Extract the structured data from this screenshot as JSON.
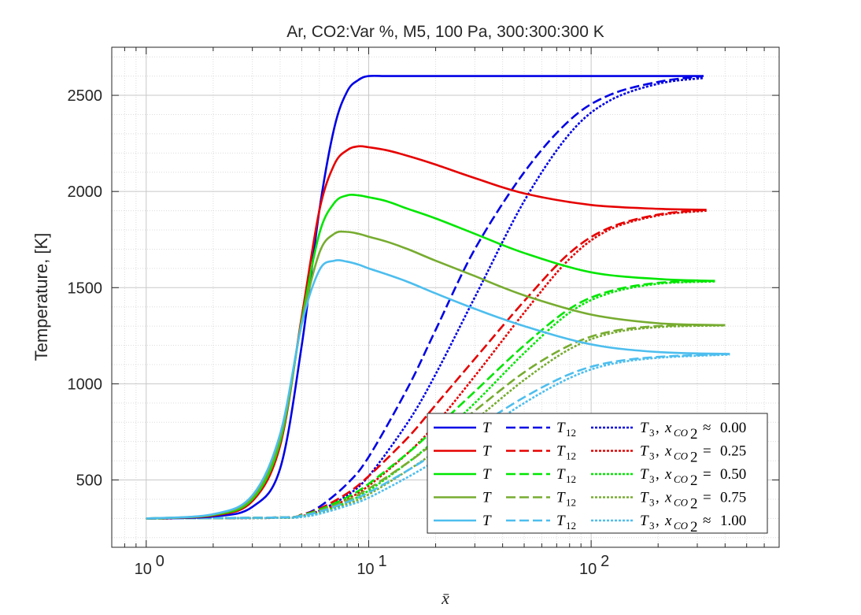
{
  "chart_data": {
    "type": "line",
    "title": "Ar, CO2:Var %, M5, 100 Pa, 300:300:300 K",
    "xlabel": "x̄",
    "ylabel": "Temperature, [K]",
    "xscale": "log",
    "xlim": [
      0.7,
      700
    ],
    "ylim": [
      150,
      2750
    ],
    "xticks": [
      1,
      10,
      100
    ],
    "xtick_labels": [
      {
        "base": "10",
        "exp": "0"
      },
      {
        "base": "10",
        "exp": "1"
      },
      {
        "base": "10",
        "exp": "2"
      }
    ],
    "yticks": [
      500,
      1000,
      1500,
      2000,
      2500
    ],
    "ytick_labels": [
      "500",
      "1000",
      "1500",
      "2000",
      "2500"
    ],
    "grid": true,
    "minor_grid": true,
    "legend_position": "bottom-right",
    "legend": {
      "T_label": "T",
      "T12_label": "T",
      "T12_sub": "12",
      "T3_label": "T",
      "T3_sub": "3",
      "x_label": "x",
      "x_sub": "CO",
      "x_subsub": "2",
      "rows": [
        {
          "rel": "≈",
          "value": "0.00"
        },
        {
          "rel": "=",
          "value": "0.25"
        },
        {
          "rel": "=",
          "value": "0.50"
        },
        {
          "rel": "=",
          "value": "0.75"
        },
        {
          "rel": "≈",
          "value": "1.00"
        }
      ]
    },
    "series": [
      {
        "group": 0,
        "kind": "T",
        "color": "#0000e6",
        "style": "solid",
        "x": [
          1,
          2,
          3,
          4,
          5,
          6,
          7,
          8,
          9,
          10,
          12,
          15,
          20,
          50,
          100,
          200,
          320
        ],
        "y": [
          300,
          310,
          360,
          560,
          1200,
          1900,
          2330,
          2520,
          2580,
          2600,
          2600,
          2600,
          2600,
          2600,
          2600,
          2600,
          2600
        ]
      },
      {
        "group": 0,
        "kind": "T12",
        "color": "#0000e6",
        "style": "dash",
        "x": [
          1,
          4,
          5,
          6,
          8,
          10,
          15,
          20,
          30,
          50,
          80,
          120,
          200,
          320
        ],
        "y": [
          300,
          305,
          320,
          360,
          480,
          620,
          980,
          1280,
          1700,
          2100,
          2370,
          2500,
          2570,
          2600
        ]
      },
      {
        "group": 0,
        "kind": "T3",
        "color": "#0000e6",
        "style": "dot",
        "x": [
          1,
          4,
          5,
          6,
          8,
          10,
          15,
          20,
          30,
          50,
          80,
          120,
          200,
          320
        ],
        "y": [
          300,
          303,
          312,
          340,
          420,
          520,
          800,
          1050,
          1450,
          1950,
          2300,
          2470,
          2560,
          2590
        ]
      },
      {
        "group": 1,
        "kind": "T",
        "color": "#e60000",
        "style": "solid",
        "x": [
          1,
          2,
          3,
          4,
          5,
          6,
          7,
          8,
          9,
          10,
          12,
          15,
          20,
          30,
          50,
          100,
          200,
          330
        ],
        "y": [
          300,
          315,
          390,
          680,
          1350,
          1900,
          2140,
          2215,
          2235,
          2230,
          2215,
          2185,
          2140,
          2070,
          1990,
          1930,
          1910,
          1905
        ]
      },
      {
        "group": 1,
        "kind": "T12",
        "color": "#e60000",
        "style": "dash",
        "x": [
          1,
          4,
          5,
          6,
          8,
          10,
          15,
          20,
          30,
          50,
          80,
          120,
          200,
          330
        ],
        "y": [
          300,
          305,
          320,
          350,
          430,
          520,
          720,
          890,
          1130,
          1430,
          1680,
          1810,
          1880,
          1905
        ]
      },
      {
        "group": 1,
        "kind": "T3",
        "color": "#e60000",
        "style": "dot",
        "x": [
          1,
          4,
          5,
          6,
          8,
          10,
          15,
          20,
          30,
          50,
          80,
          120,
          200,
          330
        ],
        "y": [
          300,
          303,
          312,
          335,
          400,
          470,
          640,
          790,
          1040,
          1370,
          1650,
          1800,
          1875,
          1900
        ]
      },
      {
        "group": 2,
        "kind": "T",
        "color": "#00e600",
        "style": "solid",
        "x": [
          1,
          2,
          3,
          4,
          5,
          6,
          7,
          8,
          9,
          10,
          12,
          15,
          20,
          30,
          50,
          100,
          200,
          360
        ],
        "y": [
          300,
          318,
          400,
          700,
          1330,
          1780,
          1940,
          1980,
          1980,
          1970,
          1950,
          1910,
          1860,
          1780,
          1680,
          1580,
          1545,
          1535
        ]
      },
      {
        "group": 2,
        "kind": "T12",
        "color": "#00e600",
        "style": "dash",
        "x": [
          1,
          4,
          5,
          6,
          8,
          10,
          15,
          20,
          30,
          50,
          80,
          120,
          200,
          360
        ],
        "y": [
          300,
          305,
          318,
          345,
          410,
          480,
          640,
          770,
          960,
          1200,
          1390,
          1480,
          1525,
          1535
        ]
      },
      {
        "group": 2,
        "kind": "T3",
        "color": "#00e600",
        "style": "dot",
        "x": [
          1,
          4,
          5,
          6,
          8,
          10,
          15,
          20,
          30,
          50,
          80,
          120,
          200,
          360
        ],
        "y": [
          300,
          303,
          310,
          330,
          385,
          445,
          590,
          710,
          900,
          1160,
          1370,
          1470,
          1520,
          1532
        ]
      },
      {
        "group": 3,
        "kind": "T",
        "color": "#77ac30",
        "style": "solid",
        "x": [
          1,
          2,
          3,
          4,
          5,
          6,
          7,
          8,
          9,
          10,
          12,
          15,
          20,
          30,
          50,
          100,
          200,
          400
        ],
        "y": [
          300,
          320,
          410,
          720,
          1320,
          1680,
          1780,
          1790,
          1780,
          1765,
          1740,
          1700,
          1640,
          1560,
          1460,
          1360,
          1315,
          1305
        ]
      },
      {
        "group": 3,
        "kind": "T12",
        "color": "#77ac30",
        "style": "dash",
        "x": [
          1,
          4,
          5,
          6,
          8,
          10,
          15,
          20,
          30,
          50,
          80,
          120,
          200,
          400
        ],
        "y": [
          300,
          305,
          316,
          340,
          395,
          455,
          590,
          700,
          860,
          1060,
          1200,
          1270,
          1300,
          1305
        ]
      },
      {
        "group": 3,
        "kind": "T3",
        "color": "#77ac30",
        "style": "dot",
        "x": [
          1,
          4,
          5,
          6,
          8,
          10,
          15,
          20,
          30,
          50,
          80,
          120,
          200,
          400
        ],
        "y": [
          300,
          303,
          309,
          327,
          375,
          425,
          550,
          650,
          810,
          1020,
          1180,
          1260,
          1295,
          1303
        ]
      },
      {
        "group": 4,
        "kind": "T",
        "color": "#4dbeee",
        "style": "solid",
        "x": [
          1,
          2,
          3,
          4,
          5,
          6,
          7,
          8,
          9,
          10,
          12,
          15,
          20,
          30,
          50,
          100,
          200,
          420
        ],
        "y": [
          300,
          322,
          420,
          740,
          1310,
          1590,
          1640,
          1635,
          1620,
          1600,
          1570,
          1530,
          1470,
          1390,
          1300,
          1205,
          1165,
          1155
        ]
      },
      {
        "group": 4,
        "kind": "T12",
        "color": "#4dbeee",
        "style": "dash",
        "x": [
          1,
          4,
          5,
          6,
          8,
          10,
          15,
          20,
          30,
          50,
          80,
          120,
          200,
          420
        ],
        "y": [
          300,
          305,
          315,
          335,
          385,
          435,
          550,
          640,
          770,
          930,
          1050,
          1110,
          1140,
          1155
        ]
      },
      {
        "group": 4,
        "kind": "T3",
        "color": "#4dbeee",
        "style": "dot",
        "x": [
          1,
          4,
          5,
          6,
          8,
          10,
          15,
          20,
          30,
          50,
          80,
          120,
          200,
          420
        ],
        "y": [
          300,
          303,
          308,
          324,
          366,
          408,
          515,
          600,
          730,
          900,
          1030,
          1100,
          1135,
          1152
        ]
      }
    ]
  }
}
